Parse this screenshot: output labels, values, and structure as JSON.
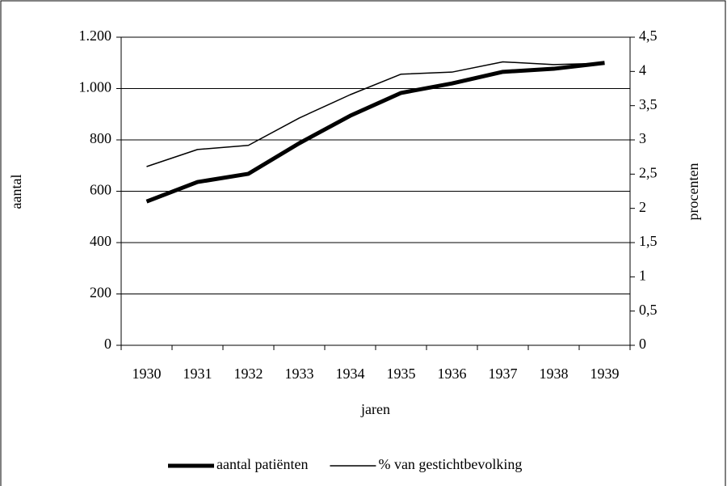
{
  "chart_data": {
    "type": "line",
    "x_label": "jaren",
    "y_label": "aantal",
    "y2_label": "procenten",
    "categories": [
      "1930",
      "1931",
      "1932",
      "1933",
      "1934",
      "1935",
      "1936",
      "1937",
      "1938",
      "1939"
    ],
    "series": [
      {
        "name": "aantal patiënten",
        "color": "#000000",
        "line_width": 5,
        "axis": "y",
        "values": [
          560,
          636,
          668,
          787,
          894,
          983,
          1020,
          1065,
          1077,
          1100
        ]
      },
      {
        "name": "% van gestichtbevolking",
        "color": "#000000",
        "line_width": 1.5,
        "axis": "y2",
        "values": [
          2.61,
          2.86,
          2.92,
          3.32,
          3.66,
          3.96,
          3.99,
          4.14,
          4.1,
          4.12
        ]
      }
    ],
    "ylim": [
      0,
      1200
    ],
    "yticks": [
      0,
      200,
      400,
      600,
      800,
      {
        "value": 1000,
        "label": "1.000"
      },
      {
        "value": 1200,
        "label": "1.200"
      }
    ],
    "y2lim": [
      0,
      4.5
    ],
    "y2ticks": [
      0,
      {
        "value": 0.5,
        "label": "0,5"
      },
      1,
      {
        "value": 1.5,
        "label": "1,5"
      },
      2,
      {
        "value": 2.5,
        "label": "2,5"
      },
      3,
      {
        "value": 3.5,
        "label": "3,5"
      },
      4,
      {
        "value": 4.5,
        "label": "4,5"
      }
    ],
    "grid": true,
    "legend": "bottom"
  }
}
